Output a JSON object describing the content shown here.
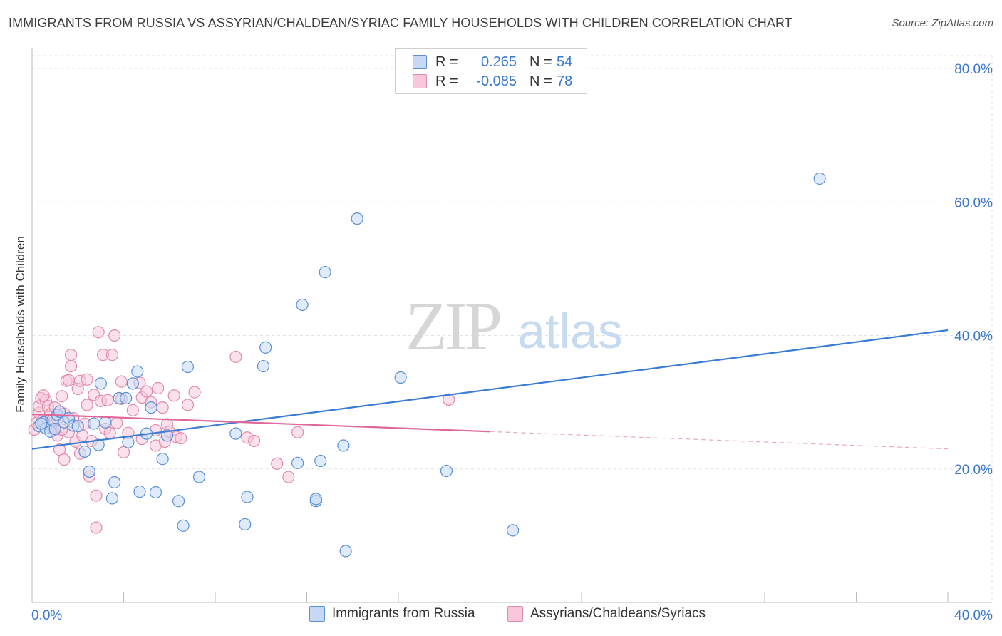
{
  "title": "IMMIGRANTS FROM RUSSIA VS ASSYRIAN/CHALDEAN/SYRIAC FAMILY HOUSEHOLDS WITH CHILDREN CORRELATION CHART",
  "source": "Source: ZipAtlas.com",
  "watermark": {
    "zip": "ZIP",
    "atlas": "atlas"
  },
  "colors": {
    "blue": "#3a7bd5",
    "blue_fill": "#c5d9f5",
    "pink": "#e0679a",
    "pink_fill": "#f8c8da",
    "axis_text": "#3a78d0"
  },
  "legend": {
    "r_label": "R =",
    "n_label": "N =",
    "rows": [
      {
        "r": "0.265",
        "n": "54"
      },
      {
        "r": "-0.085",
        "n": "78"
      }
    ]
  },
  "chart_data": {
    "type": "scatter",
    "title": "IMMIGRANTS FROM RUSSIA VS ASSYRIAN/CHALDEAN/SYRIAC FAMILY HOUSEHOLDS WITH CHILDREN CORRELATION CHART",
    "xlabel": "",
    "ylabel": "Family Households with Children",
    "xlim": [
      0,
      40
    ],
    "ylim": [
      0,
      80
    ],
    "x_tick_labels": [
      "0.0%",
      "40.0%"
    ],
    "y_ticks": [
      20,
      40,
      60,
      80
    ],
    "y_tick_labels": [
      "20.0%",
      "40.0%",
      "60.0%",
      "80.0%"
    ],
    "grid": true,
    "series": [
      {
        "name": "Immigrants from Russia",
        "color": "blue",
        "trend": {
          "x": [
            0,
            40
          ],
          "y": [
            23.0,
            40.8
          ],
          "solid_to": 40
        },
        "points": [
          [
            0.3,
            26.4
          ],
          [
            0.5,
            27.0
          ],
          [
            0.6,
            26.1
          ],
          [
            0.8,
            25.6
          ],
          [
            0.9,
            27.3
          ],
          [
            1.1,
            28.1
          ],
          [
            1.2,
            28.6
          ],
          [
            1.4,
            27.0
          ],
          [
            1.6,
            27.6
          ],
          [
            1.8,
            26.5
          ],
          [
            2.0,
            26.4
          ],
          [
            2.3,
            22.6
          ],
          [
            2.5,
            19.6
          ],
          [
            2.7,
            26.8
          ],
          [
            2.9,
            23.6
          ],
          [
            3.0,
            32.8
          ],
          [
            3.2,
            27.0
          ],
          [
            3.5,
            15.6
          ],
          [
            3.6,
            18.0
          ],
          [
            3.8,
            30.6
          ],
          [
            4.1,
            30.6
          ],
          [
            4.2,
            24.0
          ],
          [
            4.4,
            32.8
          ],
          [
            4.6,
            34.6
          ],
          [
            4.7,
            16.6
          ],
          [
            5.0,
            25.3
          ],
          [
            5.2,
            29.2
          ],
          [
            5.4,
            16.5
          ],
          [
            5.7,
            21.5
          ],
          [
            5.9,
            25.0
          ],
          [
            6.4,
            15.2
          ],
          [
            6.6,
            11.5
          ],
          [
            6.8,
            35.3
          ],
          [
            7.3,
            18.8
          ],
          [
            8.9,
            25.3
          ],
          [
            9.3,
            11.7
          ],
          [
            9.4,
            15.8
          ],
          [
            10.1,
            35.4
          ],
          [
            10.2,
            38.2
          ],
          [
            11.6,
            20.9
          ],
          [
            11.8,
            44.6
          ],
          [
            12.4,
            15.2
          ],
          [
            12.4,
            15.5
          ],
          [
            12.6,
            21.2
          ],
          [
            12.8,
            49.5
          ],
          [
            13.6,
            23.5
          ],
          [
            13.7,
            7.7
          ],
          [
            14.2,
            57.5
          ],
          [
            16.1,
            33.7
          ],
          [
            18.1,
            19.7
          ],
          [
            21.0,
            10.8
          ],
          [
            34.4,
            63.5
          ],
          [
            0.4,
            26.8
          ],
          [
            1.0,
            26.0
          ]
        ]
      },
      {
        "name": "Assyrians/Chaldeans/Syriacs",
        "color": "pink",
        "trend": {
          "x": [
            0,
            40
          ],
          "y": [
            28.2,
            23.0
          ],
          "solid_to": 20
        },
        "points": [
          [
            0.1,
            25.9
          ],
          [
            0.2,
            26.9
          ],
          [
            0.3,
            28.4
          ],
          [
            0.3,
            29.4
          ],
          [
            0.4,
            30.6
          ],
          [
            0.5,
            27.4
          ],
          [
            0.6,
            30.3
          ],
          [
            0.7,
            26.9
          ],
          [
            0.7,
            29.4
          ],
          [
            0.8,
            28.2
          ],
          [
            0.9,
            26.0
          ],
          [
            1.0,
            25.8
          ],
          [
            1.0,
            29.2
          ],
          [
            1.1,
            25.0
          ],
          [
            1.1,
            27.5
          ],
          [
            1.2,
            22.9
          ],
          [
            1.3,
            30.9
          ],
          [
            1.4,
            21.4
          ],
          [
            1.4,
            28.3
          ],
          [
            1.5,
            33.2
          ],
          [
            1.6,
            25.5
          ],
          [
            1.6,
            33.3
          ],
          [
            1.7,
            37.1
          ],
          [
            1.7,
            35.4
          ],
          [
            1.8,
            27.6
          ],
          [
            1.9,
            24.1
          ],
          [
            2.0,
            32.0
          ],
          [
            2.1,
            33.2
          ],
          [
            2.1,
            22.3
          ],
          [
            2.2,
            25.0
          ],
          [
            2.4,
            29.6
          ],
          [
            2.4,
            33.4
          ],
          [
            2.5,
            18.9
          ],
          [
            2.6,
            24.2
          ],
          [
            2.7,
            31.1
          ],
          [
            2.8,
            16.0
          ],
          [
            2.8,
            11.2
          ],
          [
            2.9,
            40.5
          ],
          [
            3.0,
            30.2
          ],
          [
            3.1,
            37.1
          ],
          [
            3.2,
            26.0
          ],
          [
            3.3,
            30.3
          ],
          [
            3.4,
            25.4
          ],
          [
            3.5,
            37.1
          ],
          [
            3.6,
            40.0
          ],
          [
            3.7,
            26.9
          ],
          [
            3.9,
            33.1
          ],
          [
            3.9,
            30.5
          ],
          [
            4.0,
            22.5
          ],
          [
            4.2,
            25.4
          ],
          [
            4.4,
            28.8
          ],
          [
            4.7,
            32.9
          ],
          [
            4.8,
            30.7
          ],
          [
            4.8,
            24.5
          ],
          [
            5.0,
            31.6
          ],
          [
            5.2,
            30.0
          ],
          [
            5.4,
            25.8
          ],
          [
            5.4,
            23.5
          ],
          [
            5.5,
            32.1
          ],
          [
            5.7,
            29.2
          ],
          [
            5.8,
            24.1
          ],
          [
            5.9,
            26.7
          ],
          [
            6.0,
            25.6
          ],
          [
            6.2,
            31.0
          ],
          [
            6.3,
            24.8
          ],
          [
            6.5,
            24.6
          ],
          [
            6.8,
            29.6
          ],
          [
            7.1,
            31.5
          ],
          [
            8.9,
            36.8
          ],
          [
            9.4,
            24.7
          ],
          [
            9.7,
            24.2
          ],
          [
            10.7,
            20.8
          ],
          [
            11.2,
            18.8
          ],
          [
            11.6,
            25.5
          ],
          [
            18.2,
            30.4
          ],
          [
            0.5,
            31.0
          ],
          [
            1.3,
            25.9
          ],
          [
            2.3,
            26.8
          ]
        ]
      }
    ]
  },
  "bottom_legend": [
    "Immigrants from Russia",
    "Assyrians/Chaldeans/Syriacs"
  ]
}
